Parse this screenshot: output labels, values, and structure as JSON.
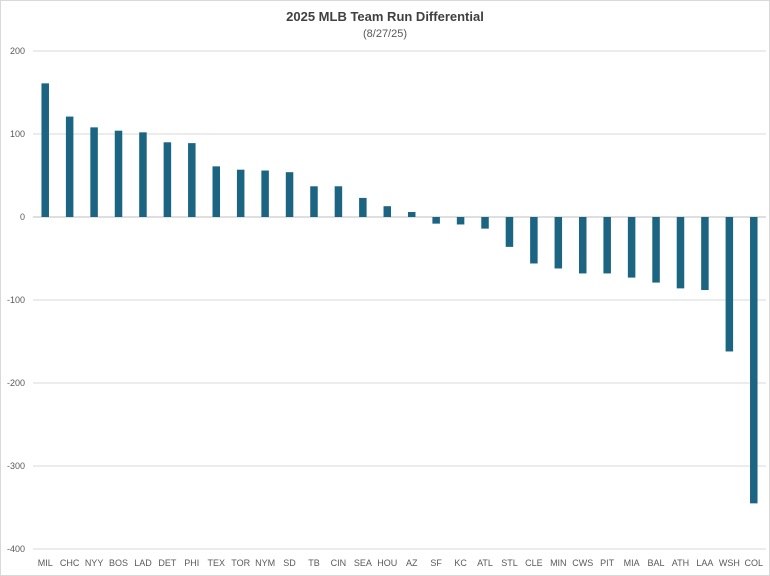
{
  "chart_data": {
    "type": "bar",
    "title": "2025 MLB Team Run Differential",
    "subtitle": "(8/27/25)",
    "xlabel": "",
    "ylabel": "",
    "ylim": [
      -400,
      200
    ],
    "yticks": [
      200,
      100,
      0,
      -100,
      -200,
      -300,
      -400
    ],
    "grid": true,
    "legend": "none",
    "bar_color": "#1b6482",
    "categories": [
      "MIL",
      "CHC",
      "NYY",
      "BOS",
      "LAD",
      "DET",
      "PHI",
      "TEX",
      "TOR",
      "NYM",
      "SD",
      "TB",
      "CIN",
      "SEA",
      "HOU",
      "AZ",
      "SF",
      "KC",
      "ATL",
      "STL",
      "CLE",
      "MIN",
      "CWS",
      "PIT",
      "MIA",
      "BAL",
      "ATH",
      "LAA",
      "WSH",
      "COL"
    ],
    "values": [
      161,
      121,
      108,
      104,
      102,
      90,
      89,
      61,
      57,
      56,
      54,
      37,
      37,
      23,
      13,
      6,
      -8,
      -9,
      -14,
      -36,
      -56,
      -62,
      -68,
      -68,
      -73,
      -79,
      -86,
      -88,
      -162,
      -345
    ]
  }
}
